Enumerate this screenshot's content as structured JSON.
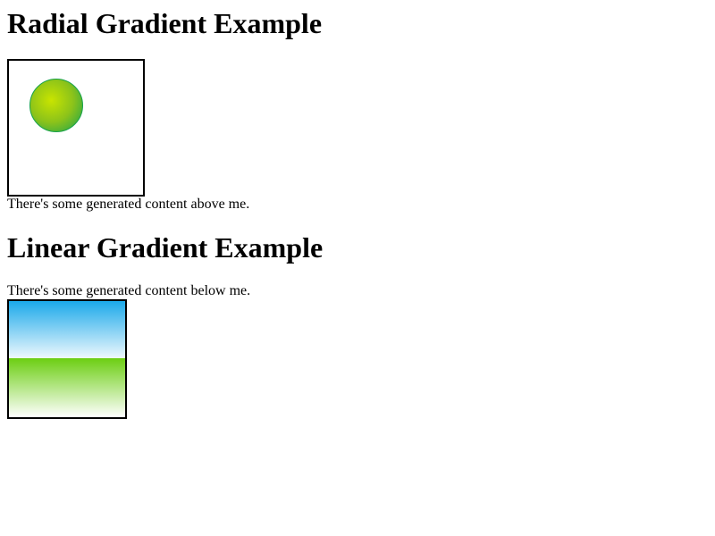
{
  "radial": {
    "title": "Radial Gradient Example",
    "caption": "There's some generated content above me.",
    "gradient": {
      "inner": "#c9e400",
      "mid": "#8cc31a",
      "outer": "#13a24f"
    }
  },
  "linear": {
    "title": "Linear Gradient Example",
    "caption": "There's some generated content below me.",
    "sky": {
      "top": "#1ba9ea",
      "bottom": "#eef8fd"
    },
    "grass": {
      "top": "#6cce12",
      "bottom": "#ffffff"
    }
  }
}
